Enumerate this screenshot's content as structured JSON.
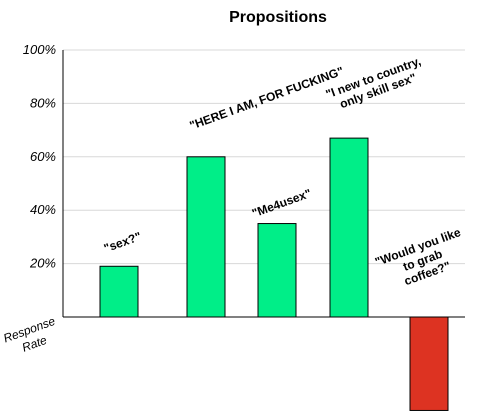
{
  "chart_data": {
    "type": "bar",
    "title": "Propositions",
    "ylabel": [
      "Response",
      "Rate"
    ],
    "ylim": [
      -35,
      100
    ],
    "ytick_labels": [
      "20%",
      "40%",
      "60%",
      "80%",
      "100%"
    ],
    "ytick_values": [
      20,
      40,
      60,
      80,
      100
    ],
    "grid": true,
    "categories": [
      "\"sex?\"",
      "\"HERE I AM, FOR FUCKING\"",
      "\"Me4usex\"",
      "\"I new to country, only skill sex\"",
      "\"Would you like to grab coffee?\""
    ],
    "values": [
      19,
      60,
      35,
      67,
      -35
    ],
    "colors": [
      "#00ee88",
      "#00ee88",
      "#00ee88",
      "#00ee88",
      "#dd3322"
    ],
    "bar_labels": [
      [
        "\"sex?\""
      ],
      [
        "\"HERE I AM, FOR FUCKING\""
      ],
      [
        "\"Me4usex\""
      ],
      [
        "\"I new to country,",
        "only skill sex\""
      ],
      [
        "\"Would you like",
        "to grab",
        "coffee?\""
      ]
    ]
  }
}
